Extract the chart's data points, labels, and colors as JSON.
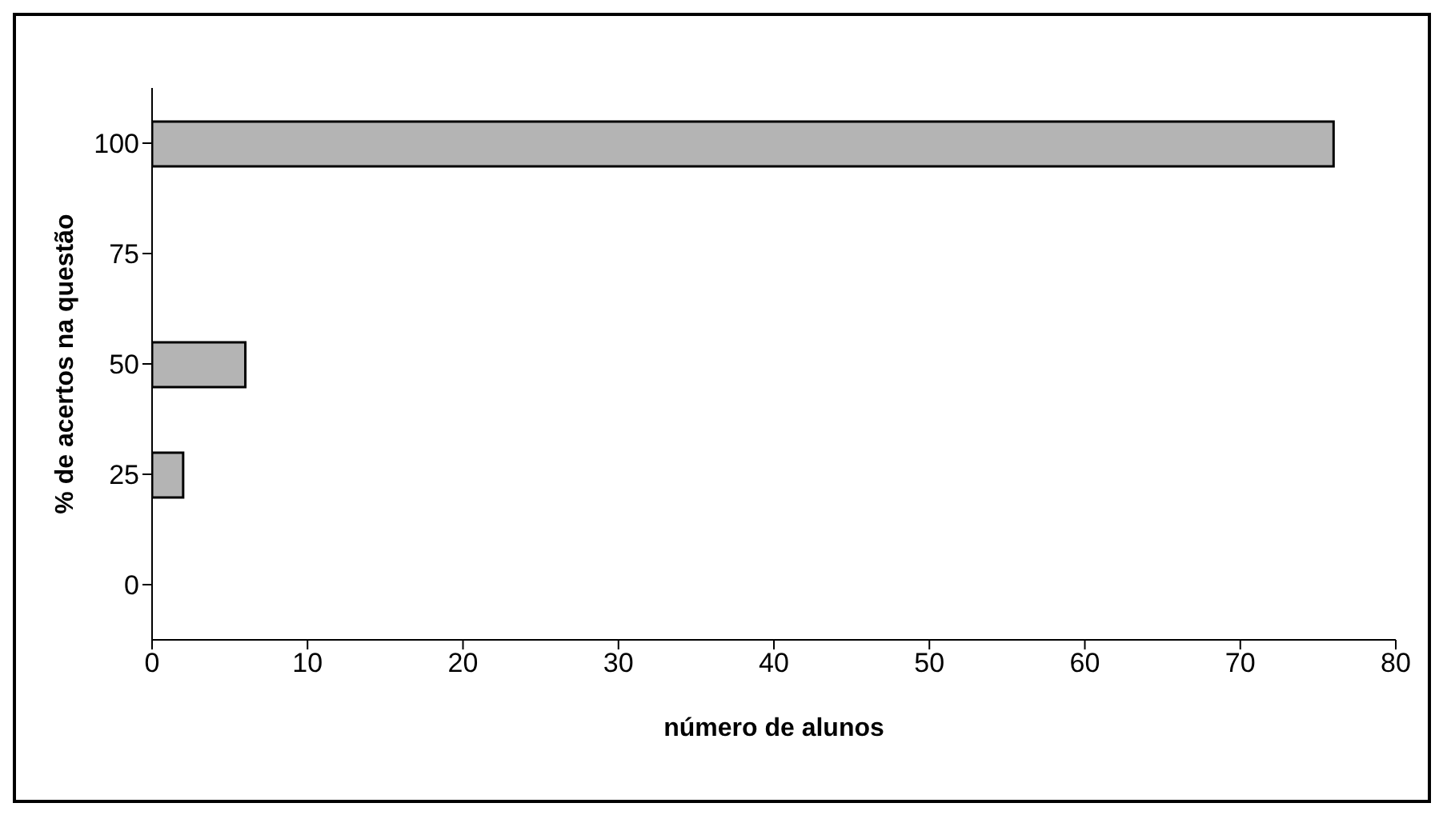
{
  "chart_data": {
    "type": "bar",
    "orientation": "horizontal",
    "xlabel": "número de alunos",
    "ylabel": "% de acertos na questão",
    "categories": [
      "100",
      "75",
      "50",
      "25",
      "0"
    ],
    "values": [
      76,
      0,
      6,
      2,
      0
    ],
    "color": "#b4b4b4",
    "xlim": [
      0,
      80
    ],
    "xticks": [
      0,
      10,
      20,
      30,
      40,
      50,
      60,
      70,
      80
    ],
    "grid": false
  }
}
